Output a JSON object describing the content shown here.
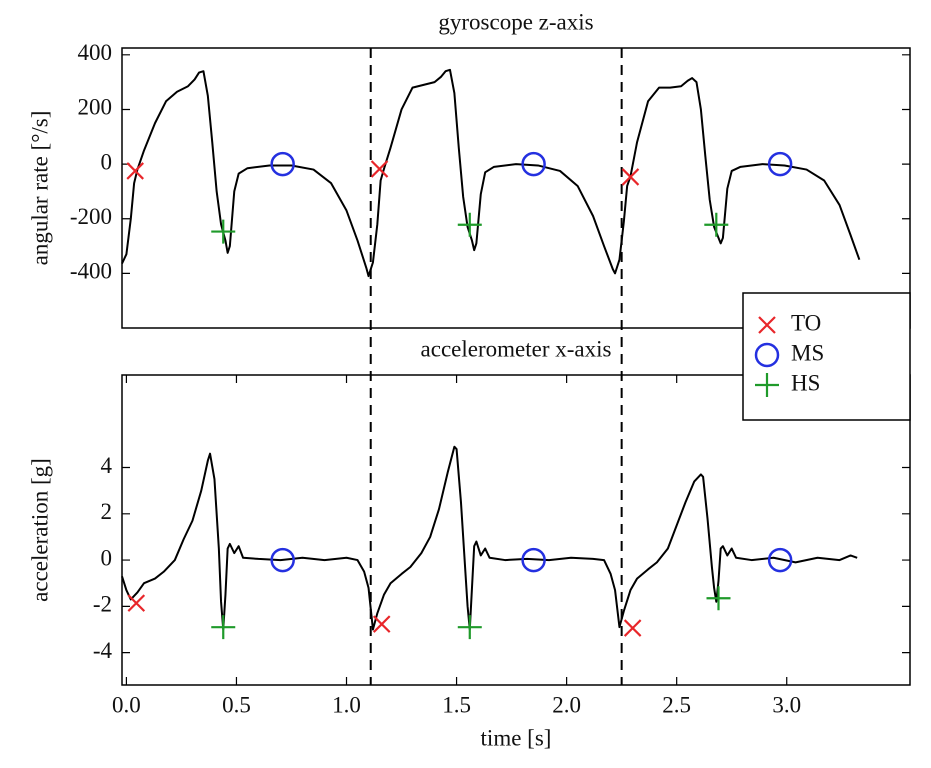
{
  "chart_data": [
    {
      "type": "line",
      "title": "gyroscope z-axis",
      "ylabel": "angular rate [°/s]",
      "xlim": [
        -0.02,
        3.56
      ],
      "ylim": [
        -600,
        425
      ],
      "yticks": [
        -400,
        -200,
        0,
        200,
        400
      ],
      "vlines": [
        1.11,
        2.25
      ],
      "legend": "lower right",
      "series": [
        {
          "color": "#000000",
          "x": [
            -0.02,
            0,
            0.02,
            0.035,
            0.05,
            0.08,
            0.13,
            0.18,
            0.23,
            0.28,
            0.31,
            0.33,
            0.35,
            0.37,
            0.39,
            0.41,
            0.43,
            0.45,
            0.46,
            0.47,
            0.49,
            0.51,
            0.55,
            0.65,
            0.75,
            0.85,
            0.93,
            1.0,
            1.05,
            1.09,
            1.1,
            1.12,
            1.14,
            1.155,
            1.17,
            1.2,
            1.25,
            1.3,
            1.35,
            1.4,
            1.43,
            1.45,
            1.47,
            1.49,
            1.51,
            1.53,
            1.55,
            1.57,
            1.58,
            1.59,
            1.61,
            1.63,
            1.67,
            1.77,
            1.87,
            1.97,
            2.05,
            2.12,
            2.17,
            2.21,
            2.22,
            2.24,
            2.26,
            2.275,
            2.29,
            2.32,
            2.37,
            2.42,
            2.47,
            2.52,
            2.55,
            2.57,
            2.59,
            2.61,
            2.63,
            2.65,
            2.67,
            2.69,
            2.7,
            2.71,
            2.73,
            2.75,
            2.79,
            2.89,
            2.99,
            3.09,
            3.17,
            3.24,
            3.29,
            3.33
          ],
          "values": [
            -364,
            -330,
            -200,
            -70,
            -20,
            50,
            150,
            230,
            265,
            285,
            310,
            335,
            340,
            250,
            80,
            -100,
            -220,
            -280,
            -325,
            -300,
            -100,
            -35,
            -15,
            -5,
            -5,
            -20,
            -70,
            -170,
            -280,
            -380,
            -410,
            -360,
            -220,
            -60,
            -18,
            60,
            200,
            280,
            290,
            300,
            320,
            340,
            345,
            260,
            60,
            -120,
            -230,
            -280,
            -315,
            -290,
            -110,
            -30,
            -10,
            0,
            -5,
            -25,
            -80,
            -190,
            -300,
            -385,
            -400,
            -350,
            -210,
            -80,
            -45,
            80,
            230,
            280,
            280,
            285,
            305,
            315,
            300,
            200,
            30,
            -130,
            -230,
            -270,
            -290,
            -270,
            -90,
            -25,
            -10,
            0,
            -5,
            -20,
            -60,
            -150,
            -260,
            -350
          ]
        },
        {
          "name": "TO",
          "marker": "x",
          "color": "#e8262a",
          "x": [
            0.04,
            1.15,
            2.29
          ],
          "values": [
            -25,
            -18,
            -47
          ]
        },
        {
          "name": "MS",
          "marker": "o",
          "color": "#2430e0",
          "x": [
            0.71,
            1.85,
            2.97
          ],
          "values": [
            0,
            0,
            0
          ]
        },
        {
          "name": "HS",
          "marker": "+",
          "color": "#1f9a2a",
          "x": [
            0.44,
            1.56,
            2.68
          ],
          "values": [
            -247,
            -222,
            -222
          ]
        }
      ]
    },
    {
      "type": "line",
      "title": "accelerometer x-axis",
      "ylabel": "acceleration [g]",
      "xlabel": "time [s]",
      "xlim": [
        -0.02,
        3.56
      ],
      "ylim": [
        -5.4,
        8
      ],
      "xticks": [
        {
          "value": 0,
          "label": "0.0"
        },
        0.5,
        {
          "value": 1,
          "label": "1.0"
        },
        1.5,
        {
          "value": 2,
          "label": "2.0"
        },
        2.5,
        {
          "value": 3,
          "label": "3.0"
        }
      ],
      "yticks": [
        -4,
        -2,
        0,
        2,
        4
      ],
      "series": [
        {
          "color": "#000000",
          "x": [
            -0.02,
            0,
            0.02,
            0.05,
            0.08,
            0.13,
            0.17,
            0.22,
            0.26,
            0.3,
            0.34,
            0.37,
            0.38,
            0.4,
            0.42,
            0.43,
            0.44,
            0.45,
            0.46,
            0.47,
            0.49,
            0.51,
            0.53,
            0.6,
            0.7,
            0.8,
            0.9,
            1.0,
            1.05,
            1.08,
            1.1,
            1.12,
            1.14,
            1.17,
            1.2,
            1.25,
            1.29,
            1.34,
            1.38,
            1.42,
            1.46,
            1.49,
            1.5,
            1.52,
            1.54,
            1.55,
            1.56,
            1.57,
            1.58,
            1.59,
            1.61,
            1.63,
            1.65,
            1.72,
            1.82,
            1.92,
            2.02,
            2.12,
            2.17,
            2.2,
            2.22,
            2.24,
            2.26,
            2.29,
            2.32,
            2.37,
            2.41,
            2.46,
            2.5,
            2.54,
            2.58,
            2.61,
            2.62,
            2.64,
            2.66,
            2.67,
            2.68,
            2.69,
            2.7,
            2.71,
            2.73,
            2.75,
            2.77,
            2.84,
            2.94,
            3.04,
            3.14,
            3.24,
            3.29,
            3.32
          ],
          "values": [
            -0.7,
            -1.3,
            -1.7,
            -1.4,
            -1.0,
            -0.8,
            -0.5,
            0.0,
            0.9,
            1.7,
            3.0,
            4.3,
            4.6,
            3.5,
            0.5,
            -1.8,
            -3.0,
            -1.5,
            0.5,
            0.7,
            0.3,
            0.6,
            0.1,
            0.05,
            0.0,
            0.1,
            0.0,
            0.1,
            0.0,
            -0.5,
            -1.2,
            -3.0,
            -2.3,
            -1.5,
            -1.0,
            -0.6,
            -0.3,
            0.3,
            1.0,
            2.2,
            3.8,
            4.9,
            4.8,
            2.5,
            -0.5,
            -2.0,
            -3.0,
            -1.2,
            0.6,
            0.8,
            0.2,
            0.5,
            0.1,
            0.0,
            0.05,
            0.0,
            0.1,
            0.05,
            0.0,
            -0.6,
            -1.3,
            -2.9,
            -2.2,
            -1.3,
            -0.8,
            -0.4,
            -0.1,
            0.5,
            1.5,
            2.5,
            3.4,
            3.7,
            3.6,
            1.8,
            -0.3,
            -1.2,
            -1.8,
            -0.9,
            0.5,
            0.6,
            0.2,
            0.5,
            0.1,
            0.0,
            0.1,
            -0.1,
            0.1,
            0.0,
            0.2,
            0.1
          ]
        },
        {
          "marker": "x",
          "color": "#e8262a",
          "x": [
            0.045,
            1.16,
            2.3
          ],
          "values": [
            -1.86,
            -2.77,
            -2.94
          ]
        },
        {
          "marker": "o",
          "color": "#2430e0",
          "x": [
            0.71,
            1.85,
            2.97
          ],
          "values": [
            0,
            0,
            0
          ]
        },
        {
          "marker": "+",
          "color": "#1f9a2a",
          "x": [
            0.44,
            1.56,
            2.69
          ],
          "values": [
            -2.9,
            -2.9,
            -1.65
          ]
        }
      ]
    }
  ]
}
